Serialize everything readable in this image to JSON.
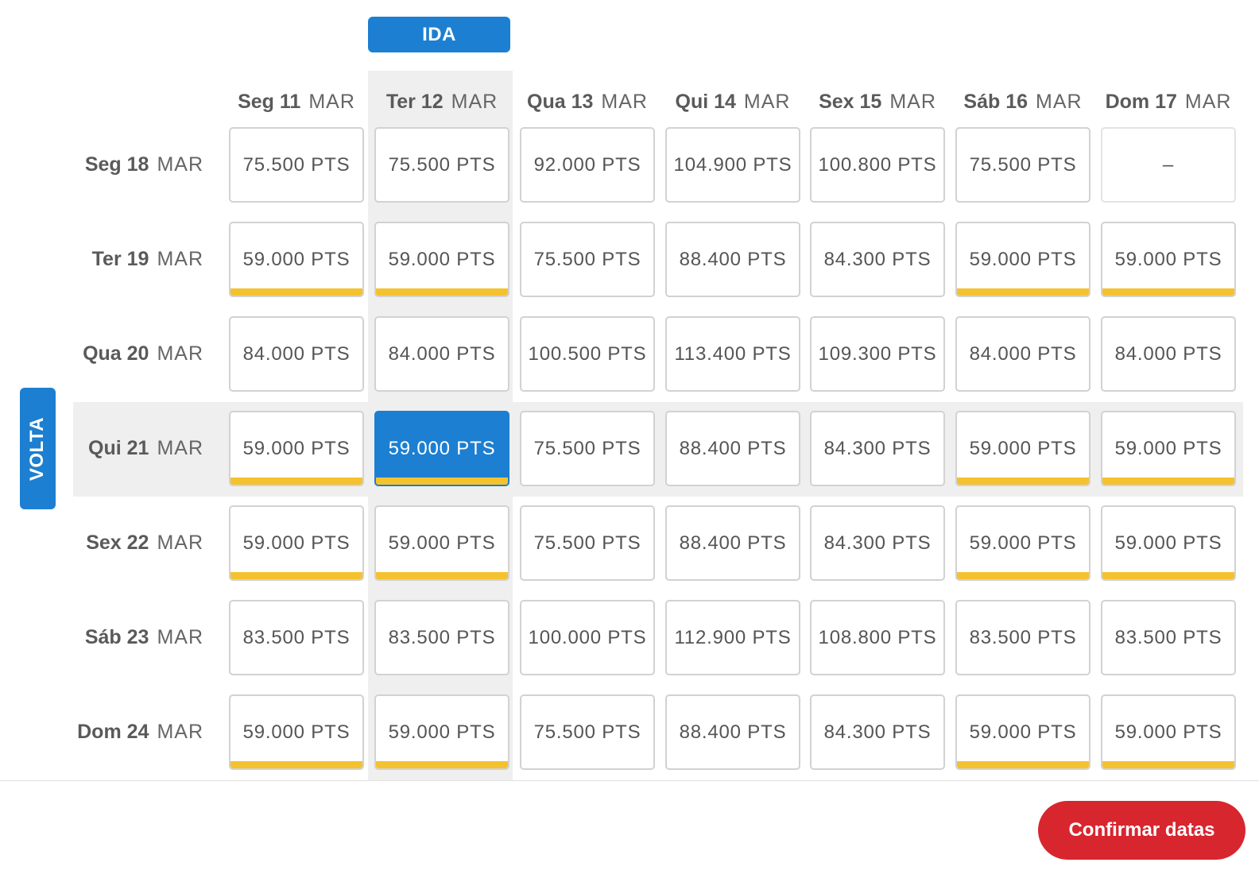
{
  "labels": {
    "ida": "IDA",
    "volta": "VOLTA",
    "confirm": "Confirmar datas"
  },
  "selection": {
    "outbound_column": 1,
    "return_row": 3
  },
  "colors": {
    "accent_blue": "#1c7fd1",
    "cheapest_bar": "#f5c22f",
    "confirm_red": "#d8262f",
    "highlight_gray": "#efefef"
  },
  "outbound_dates": [
    {
      "day": "Seg 11",
      "month": "MAR"
    },
    {
      "day": "Ter 12",
      "month": "MAR"
    },
    {
      "day": "Qua 13",
      "month": "MAR"
    },
    {
      "day": "Qui 14",
      "month": "MAR"
    },
    {
      "day": "Sex 15",
      "month": "MAR"
    },
    {
      "day": "Sáb 16",
      "month": "MAR"
    },
    {
      "day": "Dom 17",
      "month": "MAR"
    }
  ],
  "return_dates": [
    {
      "day": "Seg 18",
      "month": "MAR"
    },
    {
      "day": "Ter 19",
      "month": "MAR"
    },
    {
      "day": "Qua 20",
      "month": "MAR"
    },
    {
      "day": "Qui 21",
      "month": "MAR"
    },
    {
      "day": "Sex 22",
      "month": "MAR"
    },
    {
      "day": "Sáb 23",
      "month": "MAR"
    },
    {
      "day": "Dom 24",
      "month": "MAR"
    }
  ],
  "fares": [
    [
      {
        "price": "75.500 PTS",
        "cheapest": false
      },
      {
        "price": "75.500 PTS",
        "cheapest": false
      },
      {
        "price": "92.000 PTS",
        "cheapest": false
      },
      {
        "price": "104.900 PTS",
        "cheapest": false
      },
      {
        "price": "100.800 PTS",
        "cheapest": false
      },
      {
        "price": "75.500 PTS",
        "cheapest": false
      },
      {
        "price": "–",
        "cheapest": false,
        "unavailable": true
      }
    ],
    [
      {
        "price": "59.000 PTS",
        "cheapest": true
      },
      {
        "price": "59.000 PTS",
        "cheapest": true
      },
      {
        "price": "75.500 PTS",
        "cheapest": false
      },
      {
        "price": "88.400 PTS",
        "cheapest": false
      },
      {
        "price": "84.300 PTS",
        "cheapest": false
      },
      {
        "price": "59.000 PTS",
        "cheapest": true
      },
      {
        "price": "59.000 PTS",
        "cheapest": true
      }
    ],
    [
      {
        "price": "84.000 PTS",
        "cheapest": false
      },
      {
        "price": "84.000 PTS",
        "cheapest": false
      },
      {
        "price": "100.500 PTS",
        "cheapest": false
      },
      {
        "price": "113.400 PTS",
        "cheapest": false
      },
      {
        "price": "109.300 PTS",
        "cheapest": false
      },
      {
        "price": "84.000 PTS",
        "cheapest": false
      },
      {
        "price": "84.000 PTS",
        "cheapest": false
      }
    ],
    [
      {
        "price": "59.000 PTS",
        "cheapest": true
      },
      {
        "price": "59.000 PTS",
        "cheapest": true
      },
      {
        "price": "75.500 PTS",
        "cheapest": false
      },
      {
        "price": "88.400 PTS",
        "cheapest": false
      },
      {
        "price": "84.300 PTS",
        "cheapest": false
      },
      {
        "price": "59.000 PTS",
        "cheapest": true
      },
      {
        "price": "59.000 PTS",
        "cheapest": true
      }
    ],
    [
      {
        "price": "59.000 PTS",
        "cheapest": true
      },
      {
        "price": "59.000 PTS",
        "cheapest": true
      },
      {
        "price": "75.500 PTS",
        "cheapest": false
      },
      {
        "price": "88.400 PTS",
        "cheapest": false
      },
      {
        "price": "84.300 PTS",
        "cheapest": false
      },
      {
        "price": "59.000 PTS",
        "cheapest": true
      },
      {
        "price": "59.000 PTS",
        "cheapest": true
      }
    ],
    [
      {
        "price": "83.500 PTS",
        "cheapest": false
      },
      {
        "price": "83.500 PTS",
        "cheapest": false
      },
      {
        "price": "100.000 PTS",
        "cheapest": false
      },
      {
        "price": "112.900 PTS",
        "cheapest": false
      },
      {
        "price": "108.800 PTS",
        "cheapest": false
      },
      {
        "price": "83.500 PTS",
        "cheapest": false
      },
      {
        "price": "83.500 PTS",
        "cheapest": false
      }
    ],
    [
      {
        "price": "59.000 PTS",
        "cheapest": true
      },
      {
        "price": "59.000 PTS",
        "cheapest": true
      },
      {
        "price": "75.500 PTS",
        "cheapest": false
      },
      {
        "price": "88.400 PTS",
        "cheapest": false
      },
      {
        "price": "84.300 PTS",
        "cheapest": false
      },
      {
        "price": "59.000 PTS",
        "cheapest": true
      },
      {
        "price": "59.000 PTS",
        "cheapest": true
      }
    ]
  ]
}
